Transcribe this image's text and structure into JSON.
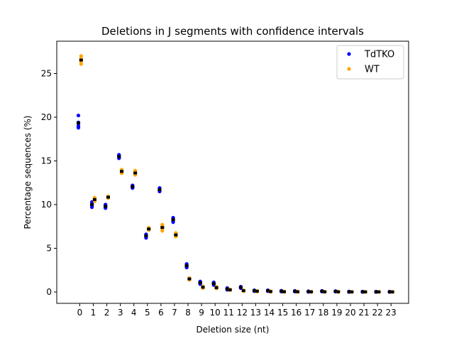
{
  "chart_data": {
    "type": "scatter",
    "title": "Deletions in J segments with confidence intervals",
    "xlabel": "Deletion size (nt)",
    "ylabel": "Percentage sequences (%)",
    "xlim": [
      -1.7,
      24.3
    ],
    "ylim": [
      -1.3,
      28.7
    ],
    "x_ticks": [
      0,
      1,
      2,
      3,
      4,
      5,
      6,
      7,
      8,
      9,
      10,
      11,
      12,
      13,
      14,
      15,
      16,
      17,
      18,
      19,
      20,
      21,
      22,
      23
    ],
    "y_ticks": [
      0,
      5,
      10,
      15,
      20,
      25
    ],
    "grid": false,
    "legend_position": "top-right",
    "series": [
      {
        "name": "TdTKO",
        "color": "#0000ff",
        "x_offset": -0.1,
        "replicates": [
          [
            19.3,
            18.8,
            20.2,
            19.0,
            19.4
          ],
          [
            10.1,
            9.7,
            10.3,
            9.9,
            10.0
          ],
          [
            9.8,
            9.6,
            10.0,
            9.7,
            9.9
          ],
          [
            15.5,
            15.3,
            15.7,
            15.4,
            15.6
          ],
          [
            12.1,
            11.9,
            12.2,
            12.0,
            12.1
          ],
          [
            6.5,
            6.2,
            6.6,
            6.4,
            6.5
          ],
          [
            11.7,
            11.5,
            11.9,
            11.6,
            11.8
          ],
          [
            8.3,
            8.0,
            8.5,
            8.2,
            8.4
          ],
          [
            3.0,
            2.8,
            3.2,
            2.9,
            3.1
          ],
          [
            1.1,
            0.9,
            1.2,
            1.0,
            1.1
          ],
          [
            1.0,
            0.8,
            1.1,
            0.9,
            1.0
          ],
          [
            0.35,
            0.25,
            0.45,
            0.3,
            0.4
          ],
          [
            0.55,
            0.45,
            0.6,
            0.5,
            0.55
          ],
          [
            0.15,
            0.1,
            0.2,
            0.15,
            0.12
          ],
          [
            0.15,
            0.1,
            0.2,
            0.12,
            0.15
          ],
          [
            0.1,
            0.05,
            0.15,
            0.1,
            0.08
          ],
          [
            0.1,
            0.05,
            0.12,
            0.08,
            0.1
          ],
          [
            0.05,
            0.02,
            0.08,
            0.05,
            0.04
          ],
          [
            0.1,
            0.05,
            0.12,
            0.08,
            0.1
          ],
          [
            0.08,
            0.05,
            0.1,
            0.06,
            0.08
          ],
          [
            0.03,
            0.01,
            0.05,
            0.03,
            0.02
          ],
          [
            0.03,
            0.01,
            0.04,
            0.02,
            0.03
          ],
          [
            0.02,
            0.01,
            0.03,
            0.02,
            0.02
          ],
          [
            0.02,
            0.01,
            0.03,
            0.02,
            0.02
          ]
        ]
      },
      {
        "name": "WT",
        "color": "#ffa500",
        "x_offset": 0.1,
        "replicates": [
          [
            26.4,
            26.1,
            27.0,
            26.5,
            26.7
          ],
          [
            10.6,
            10.4,
            10.8,
            10.5,
            10.6
          ],
          [
            10.85,
            10.75,
            10.95,
            10.8,
            10.9
          ],
          [
            13.8,
            13.6,
            14.0,
            13.7,
            13.9
          ],
          [
            13.6,
            13.4,
            13.9,
            13.5,
            13.7
          ],
          [
            7.2,
            7.1,
            7.35,
            7.15,
            7.25
          ],
          [
            7.4,
            7.0,
            7.7,
            7.3,
            7.5
          ],
          [
            6.5,
            6.35,
            6.75,
            6.45,
            6.6
          ],
          [
            1.5,
            1.4,
            1.6,
            1.45,
            1.55
          ],
          [
            0.55,
            0.45,
            0.65,
            0.5,
            0.6
          ],
          [
            0.5,
            0.4,
            0.6,
            0.45,
            0.55
          ],
          [
            0.25,
            0.2,
            0.3,
            0.22,
            0.28
          ],
          [
            0.15,
            0.1,
            0.2,
            0.12,
            0.18
          ],
          [
            0.1,
            0.05,
            0.12,
            0.08,
            0.1
          ],
          [
            0.05,
            0.02,
            0.08,
            0.04,
            0.06
          ],
          [
            0.03,
            0.01,
            0.05,
            0.02,
            0.04
          ],
          [
            0.03,
            0.01,
            0.05,
            0.02,
            0.03
          ],
          [
            0.02,
            0.01,
            0.03,
            0.02,
            0.02
          ],
          [
            0.02,
            0.01,
            0.03,
            0.02,
            0.02
          ],
          [
            0.02,
            0.01,
            0.03,
            0.02,
            0.02
          ],
          [
            0.01,
            0.0,
            0.02,
            0.01,
            0.01
          ],
          [
            0.01,
            0.0,
            0.02,
            0.01,
            0.01
          ],
          [
            0.01,
            0.0,
            0.02,
            0.01,
            0.01
          ],
          [
            0.01,
            0.0,
            0.02,
            0.01,
            0.01
          ]
        ]
      }
    ],
    "mean_marker_color": "#000000"
  }
}
